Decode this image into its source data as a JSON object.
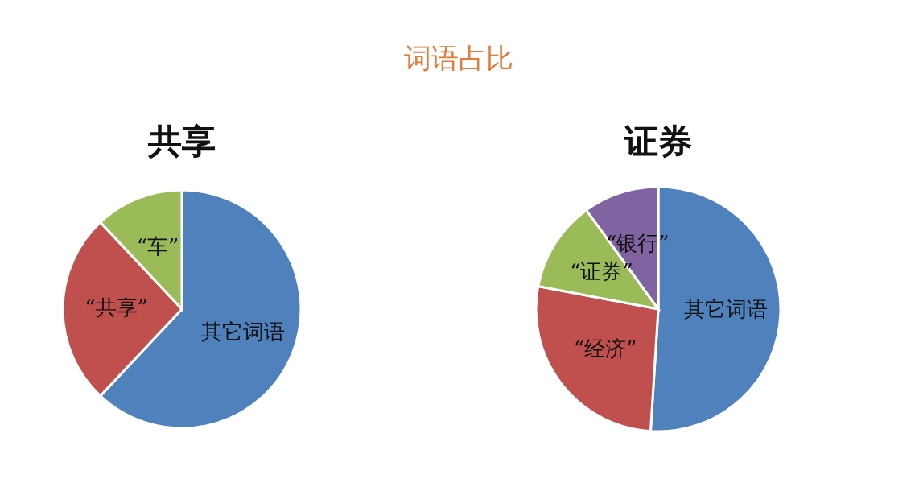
{
  "chart_data": [
    {
      "type": "pie",
      "title": "共享",
      "annotations": [
        "词语占比"
      ],
      "categories": [
        "其它词语",
        "“共享”",
        "“车”"
      ],
      "values": [
        62,
        26,
        12
      ],
      "colors": [
        "#4f81bd",
        "#c0504d",
        "#9bbb59"
      ]
    },
    {
      "type": "pie",
      "title": "证券",
      "categories": [
        "其它词语",
        "“经济”",
        "“证券”",
        "“银行”"
      ],
      "values": [
        51,
        27,
        12,
        10
      ],
      "colors": [
        "#4f81bd",
        "#c0504d",
        "#9bbb59",
        "#8064a2"
      ]
    }
  ]
}
